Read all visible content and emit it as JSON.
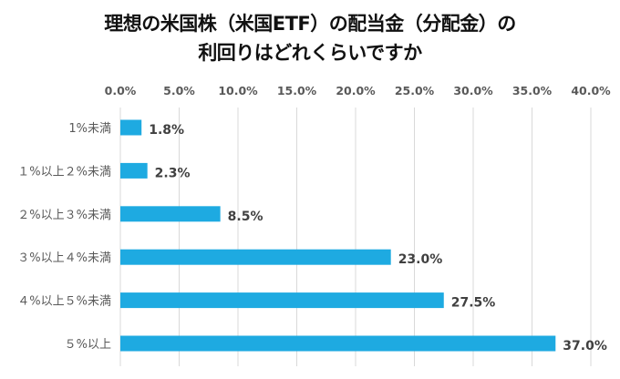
{
  "chart_data": {
    "type": "bar",
    "orientation": "horizontal",
    "title": [
      "理想の米国株（米国ETF）の配当金（分配金）の",
      "利回りはどれくらいですか"
    ],
    "xlabel": "",
    "ylabel": "",
    "xlim": [
      0,
      40
    ],
    "x_ticks": [
      "0.0%",
      "5.0%",
      "10.0%",
      "15.0%",
      "20.0%",
      "25.0%",
      "30.0%",
      "35.0%",
      "40.0%"
    ],
    "x_axis_position": "top",
    "grid": true,
    "categories": [
      "1%未満",
      "１%以上２%未満",
      "２%以上３%未満",
      "３%以上４%未満",
      "４%以上５%未満",
      "５%以上"
    ],
    "values": [
      1.8,
      2.3,
      8.5,
      23.0,
      27.5,
      37.0
    ],
    "data_labels": [
      "1.8%",
      "2.3%",
      "8.5%",
      "23.0%",
      "27.5%",
      "37.0%"
    ],
    "bar_color": "#1EAAE1"
  }
}
